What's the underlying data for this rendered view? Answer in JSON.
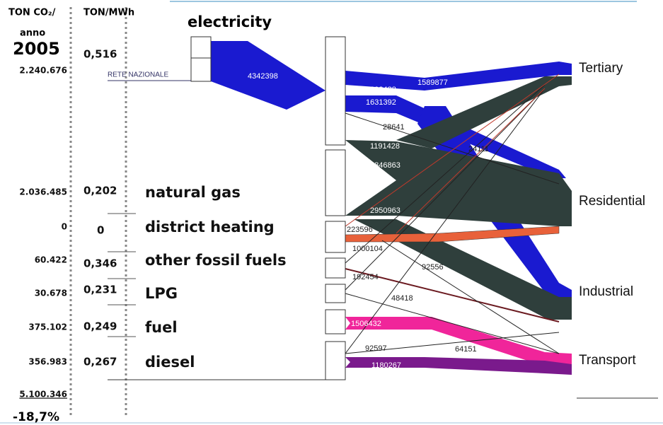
{
  "header": {
    "left_title": "TON CO₂/",
    "left_subtitle": "anno",
    "year": "2005",
    "right_title": "TON/MWh"
  },
  "electricity": {
    "label": "electricity",
    "grid": "RETE NAZIONALE",
    "flow": "4342398",
    "emissions": "2.240.676",
    "factor": "0,516"
  },
  "sources": [
    {
      "label": "natural gas",
      "emissions": "2.036.485",
      "factor": "0,202"
    },
    {
      "label": "district heating",
      "emissions": "0",
      "factor": "0"
    },
    {
      "label": "other fossil fuels",
      "emissions": "60.422",
      "factor": "0,346"
    },
    {
      "label": "LPG",
      "emissions": "30.678",
      "factor": "0,231"
    },
    {
      "label": "fuel",
      "emissions": "375.102",
      "factor": "0,249"
    },
    {
      "label": "diesel",
      "emissions": "356.983",
      "factor": "0,267"
    }
  ],
  "targets": [
    "Tertiary",
    "Residential",
    "Industrial",
    "Transport"
  ],
  "flows": [
    "1589877",
    "1092488",
    "1631392",
    "28641",
    "1191428",
    "5846863",
    "2950963",
    "223596",
    "1000104",
    "92556",
    "192454",
    "48418",
    "1506432",
    "92597",
    "64151",
    "1180267",
    "24111"
  ],
  "total": "5.100.346",
  "change": "-18,7%"
}
